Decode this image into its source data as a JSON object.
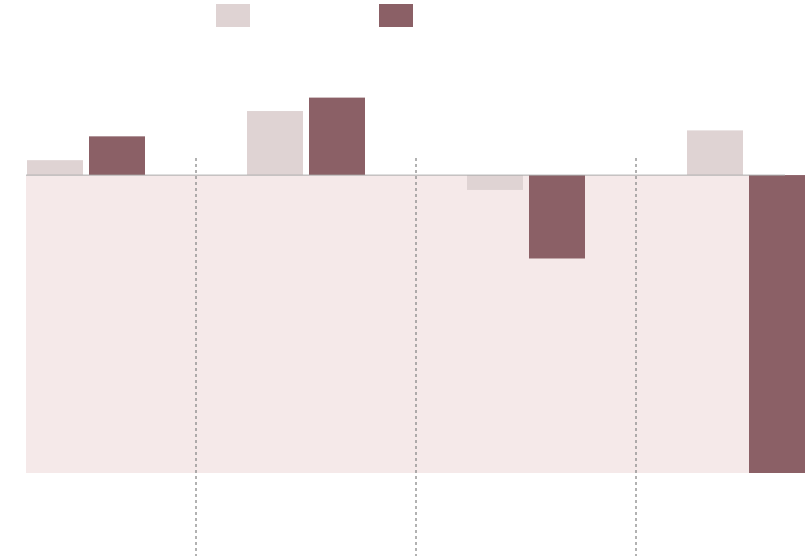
{
  "chart_data": {
    "type": "bar",
    "categories": [
      null,
      null,
      null,
      null
    ],
    "series": [
      {
        "color": "#dfd3d3",
        "values": [
          5,
          21.5,
          -5,
          15
        ]
      },
      {
        "color": "#8b6066",
        "values": [
          13,
          26,
          -28,
          -100
        ]
      }
    ],
    "ylim": [
      -100,
      45
    ],
    "legend": "top"
  }
}
